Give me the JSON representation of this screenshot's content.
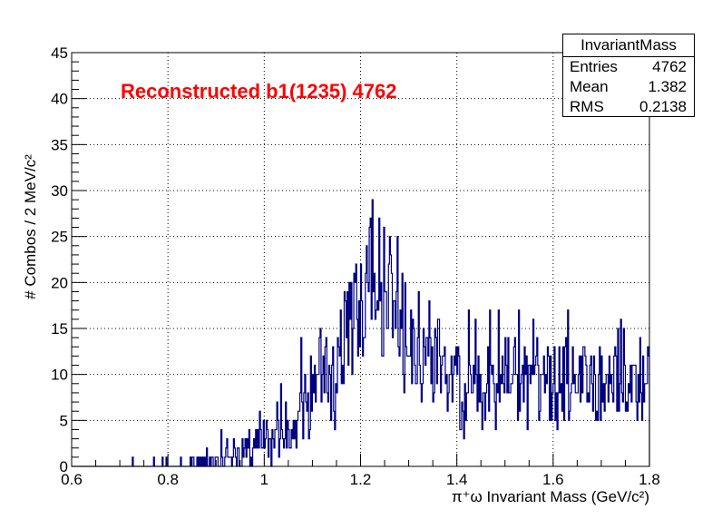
{
  "chart_data": {
    "type": "bar",
    "histogram_name": "InvariantMass",
    "annotation": "Reconstructed b1(1235) 4762",
    "xlabel": "π⁺ω Invariant Mass (GeV/c²)",
    "ylabel": "# Combos / 2 MeV/c²",
    "xlim": [
      0.6,
      1.8
    ],
    "ylim": [
      0,
      45
    ],
    "x_ticks": [
      "0.6",
      "0.8",
      "1",
      "1.2",
      "1.4",
      "1.6",
      "1.8"
    ],
    "y_ticks": [
      "0",
      "5",
      "10",
      "15",
      "20",
      "25",
      "30",
      "35",
      "40",
      "45"
    ],
    "grid": true,
    "bin_width": 0.002,
    "line_color": "#000080",
    "annotation_color": "#ff0000",
    "stats": {
      "title": "InvariantMass",
      "entries_label": "Entries",
      "entries": "4762",
      "mean_label": "Mean",
      "mean": "1.382",
      "rms_label": "RMS",
      "rms": "0.2138"
    },
    "envelope": {
      "x": [
        0.6,
        0.72,
        0.8,
        0.9,
        1.0,
        1.05,
        1.1,
        1.15,
        1.18,
        1.2,
        1.22,
        1.25,
        1.28,
        1.3,
        1.35,
        1.4,
        1.5,
        1.6,
        1.7,
        1.8
      ],
      "y": [
        0,
        0,
        0.15,
        0.6,
        2.5,
        4.5,
        8,
        12,
        16,
        19,
        21,
        20,
        17,
        13,
        10,
        9,
        9.5,
        10,
        10,
        9
      ]
    }
  }
}
